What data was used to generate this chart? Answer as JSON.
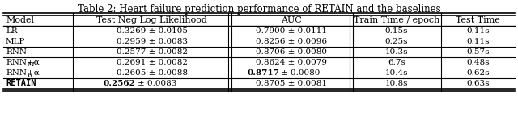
{
  "title": "Table 2: Heart failure prediction performance of RETAIN and the baselines",
  "col_headers": [
    "Model",
    "Test Neg Log Likelihood",
    "AUC",
    "Train Time / epoch",
    "Test Time"
  ],
  "rows": [
    {
      "model": "LR",
      "nll": "0.3269 ± 0.0105",
      "nll_bold": false,
      "auc": "0.7900 ± 0.0111",
      "auc_bold": false,
      "train": "0.15s",
      "test": "0.11s",
      "model_bold": false,
      "model_tt": false
    },
    {
      "model": "MLP",
      "nll": "0.2959 ± 0.0083",
      "nll_bold": false,
      "auc": "0.8256 ± 0.0096",
      "auc_bold": false,
      "train": "0.25s",
      "test": "0.11s",
      "model_bold": false,
      "model_tt": false
    },
    {
      "model": "RNN",
      "nll": "0.2577 ± 0.0082",
      "nll_bold": false,
      "auc": "0.8706 ± 0.0080",
      "auc_bold": false,
      "train": "10.3s",
      "test": "0.57s",
      "model_bold": false,
      "model_tt": false
    },
    {
      "model": "RNN+α_M",
      "nll": "0.2691 ± 0.0082",
      "nll_bold": false,
      "auc": "0.8624 ± 0.0079",
      "auc_bold": false,
      "train": "6.7s",
      "test": "0.48s",
      "model_bold": false,
      "model_tt": false
    },
    {
      "model": "RNN+α_R",
      "nll": "0.2605 ± 0.0088",
      "nll_bold": false,
      "auc": "0.8717 ± 0.0080",
      "auc_bold": true,
      "train": "10.4s",
      "test": "0.62s",
      "model_bold": false,
      "model_tt": false
    },
    {
      "model": "RETAIN",
      "nll": "0.2562 ± 0.0083",
      "nll_bold": true,
      "auc": "0.8705 ± 0.0081",
      "auc_bold": false,
      "train": "10.8s",
      "test": "0.63s",
      "model_bold": true,
      "model_tt": true
    }
  ],
  "sep_after_rows": [
    1,
    2,
    4
  ],
  "title_fontsize": 8.5,
  "header_fontsize": 8.0,
  "cell_fontsize": 7.5
}
